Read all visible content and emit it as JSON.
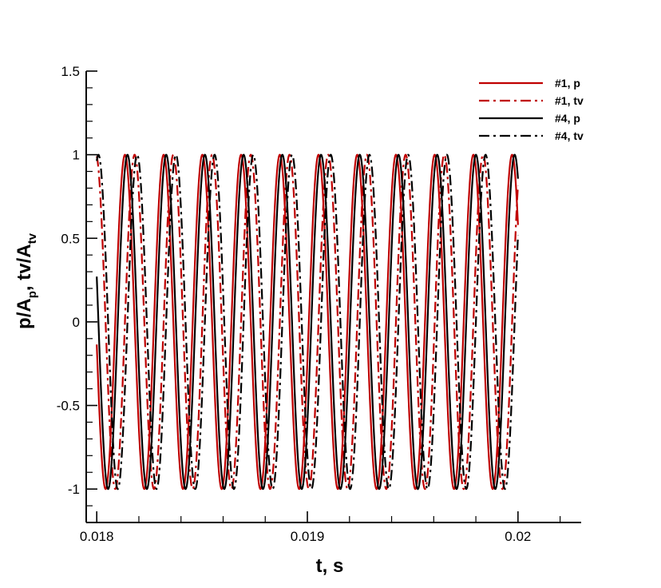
{
  "chart_data": {
    "type": "line",
    "title": "",
    "xlabel": "t, s",
    "ylabel_parts": {
      "p": "p/A",
      "p_sub": "p",
      "mid": ", tv/A",
      "tv_sub": "tv"
    },
    "xlim": [
      0.01795,
      0.0203
    ],
    "ylim": [
      -1.2,
      1.5
    ],
    "x_major_ticks": [
      0.018,
      0.019,
      0.02
    ],
    "x_tick_labels": [
      "0.018",
      "0.019",
      "0.02"
    ],
    "y_major_ticks": [
      -1,
      -0.5,
      0,
      0.5,
      1,
      1.5
    ],
    "y_tick_labels": [
      "-1",
      "-0.5",
      "0",
      "0.5",
      "1",
      "1.5"
    ],
    "x_range_data": [
      0.018,
      0.02
    ],
    "legend_position": "top-right",
    "grid": false,
    "series": [
      {
        "name": "#1, p",
        "color": "#c00000",
        "dash": "solid",
        "frequency_hz": 5440,
        "phase_rad": 3.78,
        "peaks_at_t": [
          0.01823,
          0.01841,
          0.0186,
          0.01878,
          0.01896,
          0.01915,
          0.01933,
          0.01951,
          0.0197,
          0.01988
        ]
      },
      {
        "name": "#1, tv",
        "color": "#c00000",
        "dash": "dash-dot",
        "frequency_hz": 5440,
        "phase_rad": 2.21,
        "peaks_at_t": [
          0.01805,
          0.01823,
          0.01841,
          0.0186,
          0.01878,
          0.01897,
          0.01915,
          0.01933,
          0.01952,
          0.0197,
          0.01988
        ]
      },
      {
        "name": "#4, p",
        "color": "#000000",
        "dash": "solid",
        "frequency_hz": 5440,
        "phase_rad": 3.37,
        "peaks_at_t": [
          0.0181,
          0.01829,
          0.01847,
          0.01865,
          0.01884,
          0.01902,
          0.0192,
          0.01939,
          0.01957,
          0.01975,
          0.01994
        ]
      },
      {
        "name": "#4, tv",
        "color": "#000000",
        "dash": "dash-dot",
        "frequency_hz": 5440,
        "phase_rad": 1.8,
        "peaks_at_t": [
          0.01817,
          0.01835,
          0.01853,
          0.01872,
          0.0189,
          0.01908,
          0.01927,
          0.01945,
          0.01963,
          0.01982
        ]
      }
    ]
  }
}
